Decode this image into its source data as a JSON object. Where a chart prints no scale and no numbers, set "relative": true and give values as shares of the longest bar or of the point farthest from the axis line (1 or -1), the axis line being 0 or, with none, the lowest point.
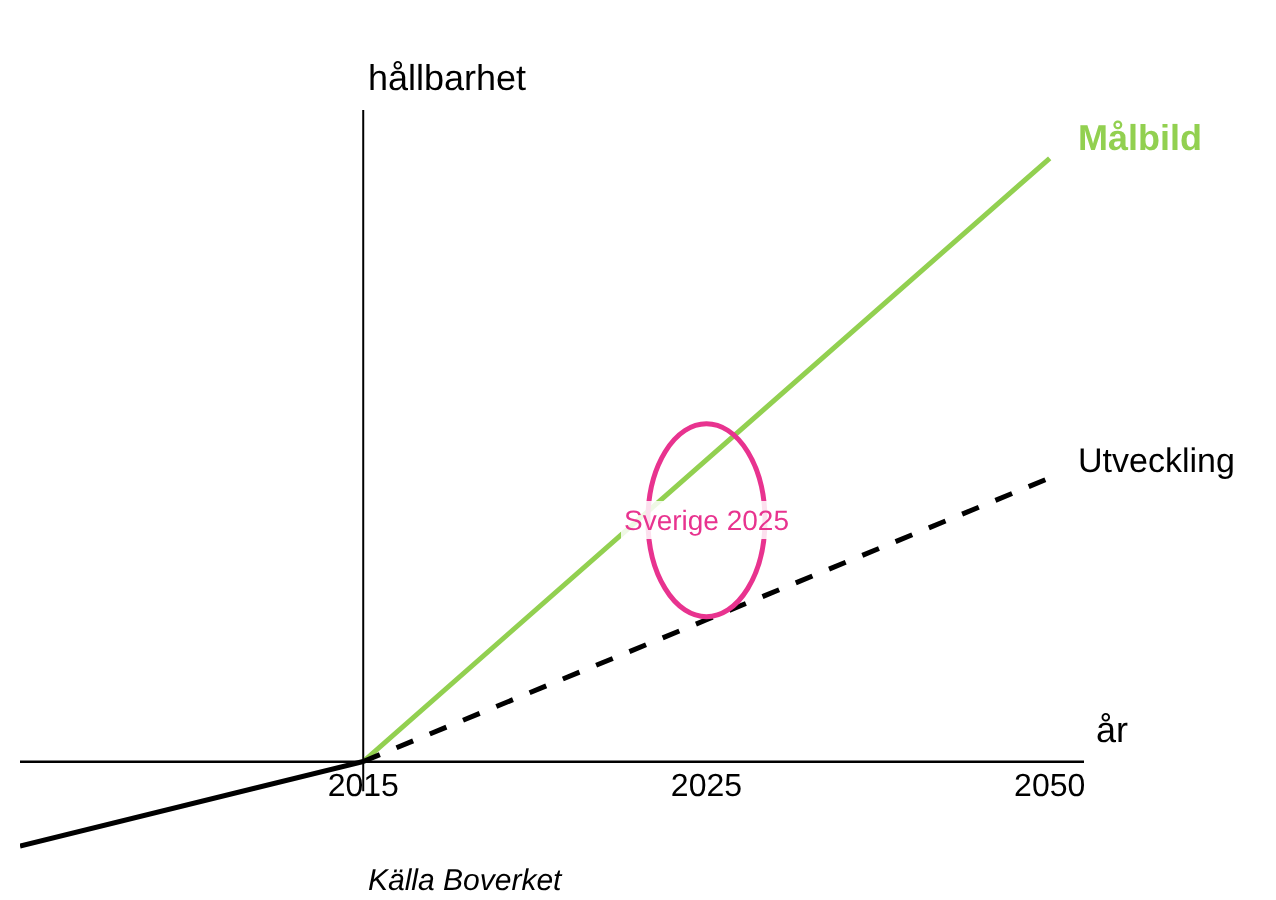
{
  "chart_data": {
    "type": "line",
    "relative": true,
    "xlabel": "år",
    "ylabel": "hållbarhet",
    "categories": [
      null,
      "2015",
      "2025",
      "2050"
    ],
    "legend": false,
    "marker": "none",
    "series": [
      {
        "name": "Målbild",
        "color": "#92d050",
        "values": [
          null,
          0,
          0.5,
          1
        ],
        "line_style": "solid"
      },
      {
        "name": "Utveckling",
        "color": "#000000",
        "values": [
          null,
          0,
          0.235,
          0.47
        ],
        "line_style": "dashed"
      },
      {
        "color": "#000000",
        "values": [
          -0.14,
          0,
          null,
          null
        ],
        "line_style": "solid"
      }
    ],
    "annotations": [
      "Sverige 2025",
      "Källa Boverket"
    ]
  }
}
